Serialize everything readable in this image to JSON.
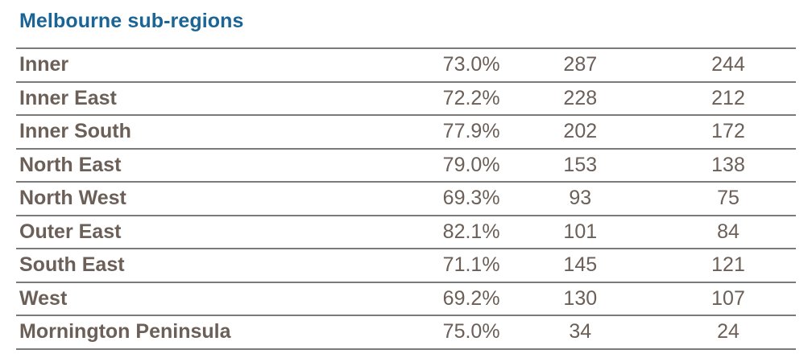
{
  "title": "Melbourne sub-regions",
  "rows": [
    {
      "name": "Inner",
      "rate": "73.0%",
      "col2": "287",
      "col3": "244"
    },
    {
      "name": "Inner East",
      "rate": "72.2%",
      "col2": "228",
      "col3": "212"
    },
    {
      "name": "Inner South",
      "rate": "77.9%",
      "col2": "202",
      "col3": "172"
    },
    {
      "name": "North East",
      "rate": "79.0%",
      "col2": "153",
      "col3": "138"
    },
    {
      "name": "North West",
      "rate": "69.3%",
      "col2": "93",
      "col3": "75"
    },
    {
      "name": "Outer East",
      "rate": "82.1%",
      "col2": "101",
      "col3": "84"
    },
    {
      "name": "South East",
      "rate": "71.1%",
      "col2": "145",
      "col3": "121"
    },
    {
      "name": "West",
      "rate": "69.2%",
      "col2": "130",
      "col3": "107"
    },
    {
      "name": "Mornington Peninsula",
      "rate": "75.0%",
      "col2": "34",
      "col3": "24"
    }
  ],
  "colors": {
    "title": "#1a6496",
    "text": "#6b5f57",
    "rule": "#7a7a7a"
  }
}
